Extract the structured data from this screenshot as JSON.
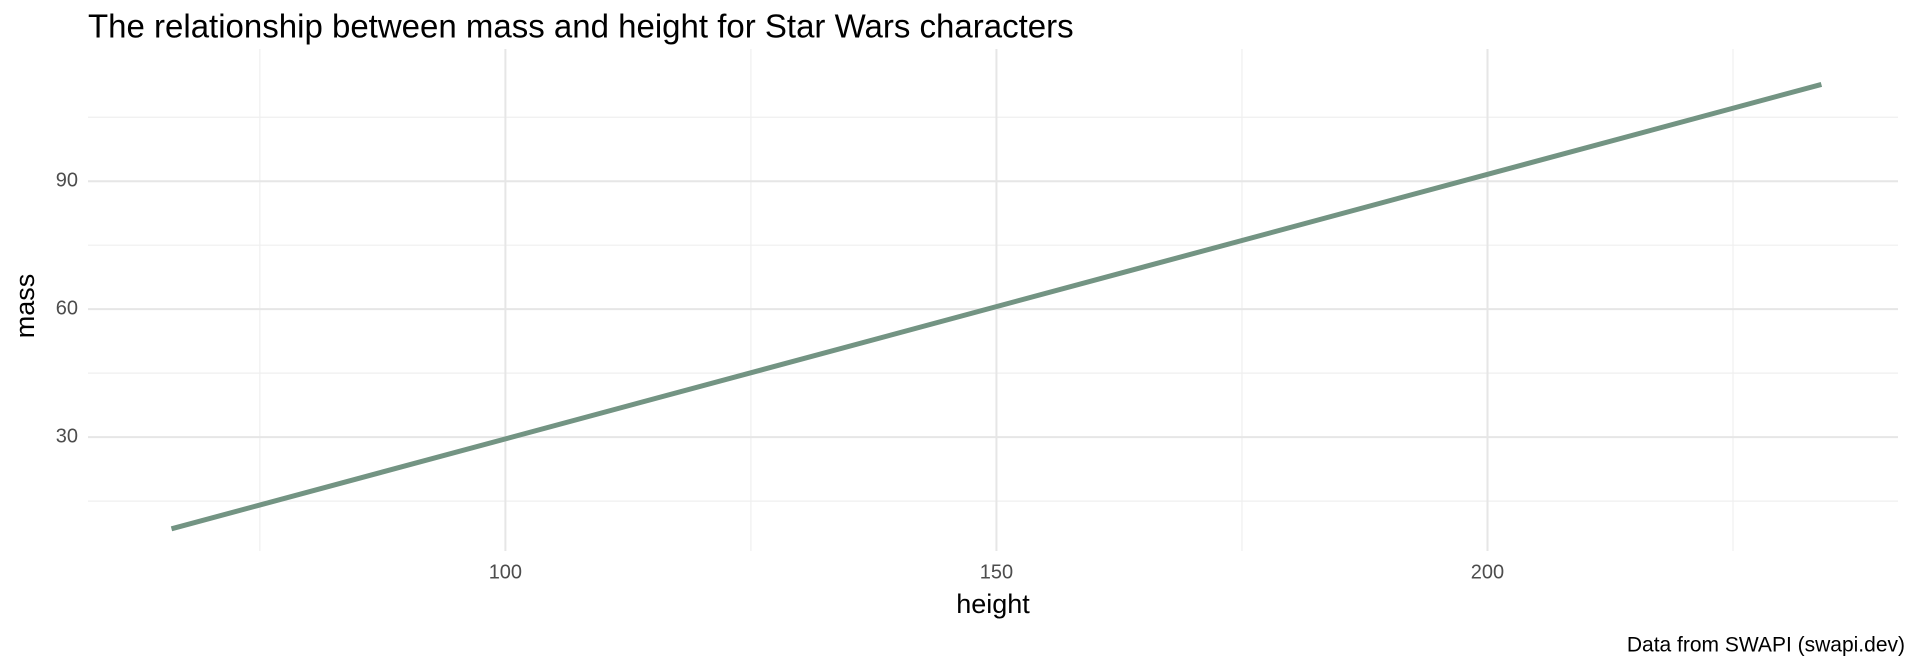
{
  "chart_data": {
    "type": "line",
    "title": "The relationship between mass and height for Star Wars characters",
    "x_label": "height",
    "y_label": "mass",
    "caption": "Data from SWAPI (swapi.dev)",
    "x": [
      66,
      234
    ],
    "series": [
      {
        "name": "mass",
        "color": "#739483",
        "values": [
          8.5,
          112.7
        ]
      }
    ],
    "xlim": [
      57.5,
      241.8
    ],
    "ylim": [
      3.3,
      121
    ],
    "xticks": [
      100,
      150,
      200
    ],
    "yticks": [
      30,
      60,
      90
    ],
    "x_minor_ticks": [
      75,
      125,
      175,
      225
    ],
    "y_minor_ticks": [
      15,
      45,
      75,
      105
    ],
    "grid": true,
    "legend": false
  }
}
